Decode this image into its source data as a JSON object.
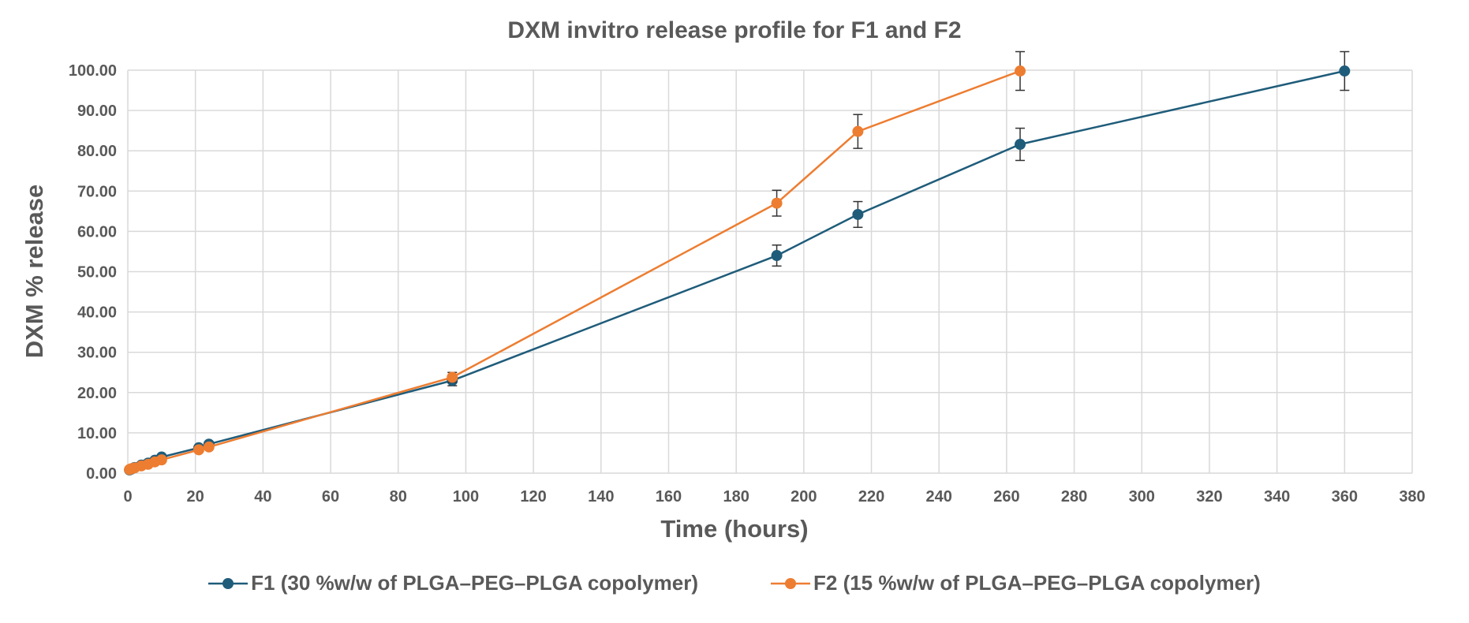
{
  "chart_data": {
    "type": "line",
    "title": "DXM invitro release profile for F1 and F2",
    "xlabel": "Time (hours)",
    "ylabel": "DXM % release",
    "xlim": [
      0,
      380
    ],
    "ylim": [
      0,
      100
    ],
    "x_ticks": [
      "0",
      "20",
      "40",
      "60",
      "80",
      "100",
      "120",
      "140",
      "160",
      "180",
      "200",
      "220",
      "240",
      "260",
      "280",
      "300",
      "320",
      "340",
      "360",
      "380"
    ],
    "y_ticks": [
      "0.00",
      "10.00",
      "20.00",
      "30.00",
      "40.00",
      "50.00",
      "60.00",
      "70.00",
      "80.00",
      "90.00",
      "100.00"
    ],
    "grid": true,
    "legend_position": "bottom",
    "series": [
      {
        "name": "F1 (30 %w/w of PLGA–PEG–PLGA copolymer)",
        "color": "#1f5c7a",
        "x": [
          0.5,
          1,
          2,
          4,
          6,
          8,
          10,
          21,
          24,
          96,
          192,
          216,
          264,
          360
        ],
        "y": [
          0.8,
          1.0,
          1.4,
          2.0,
          2.5,
          3.2,
          4.0,
          6.3,
          7.2,
          23.0,
          54.0,
          64.2,
          81.6,
          99.8
        ],
        "error": [
          0,
          0,
          0,
          0,
          0,
          0,
          0,
          0,
          0,
          1.3,
          2.6,
          3.2,
          4.0,
          4.8
        ]
      },
      {
        "name": "F2 (15 %w/w of PLGA–PEG–PLGA copolymer)",
        "color": "#ed7d31",
        "x": [
          0.5,
          1,
          2,
          4,
          6,
          8,
          10,
          21,
          24,
          96,
          192,
          216,
          264
        ],
        "y": [
          0.9,
          1.1,
          1.3,
          1.8,
          2.2,
          2.8,
          3.3,
          5.8,
          6.5,
          23.8,
          67.0,
          84.8,
          99.8
        ],
        "error": [
          0,
          0,
          0,
          0,
          0,
          0,
          0,
          0,
          0,
          1.2,
          3.2,
          4.2,
          4.8
        ]
      }
    ]
  }
}
